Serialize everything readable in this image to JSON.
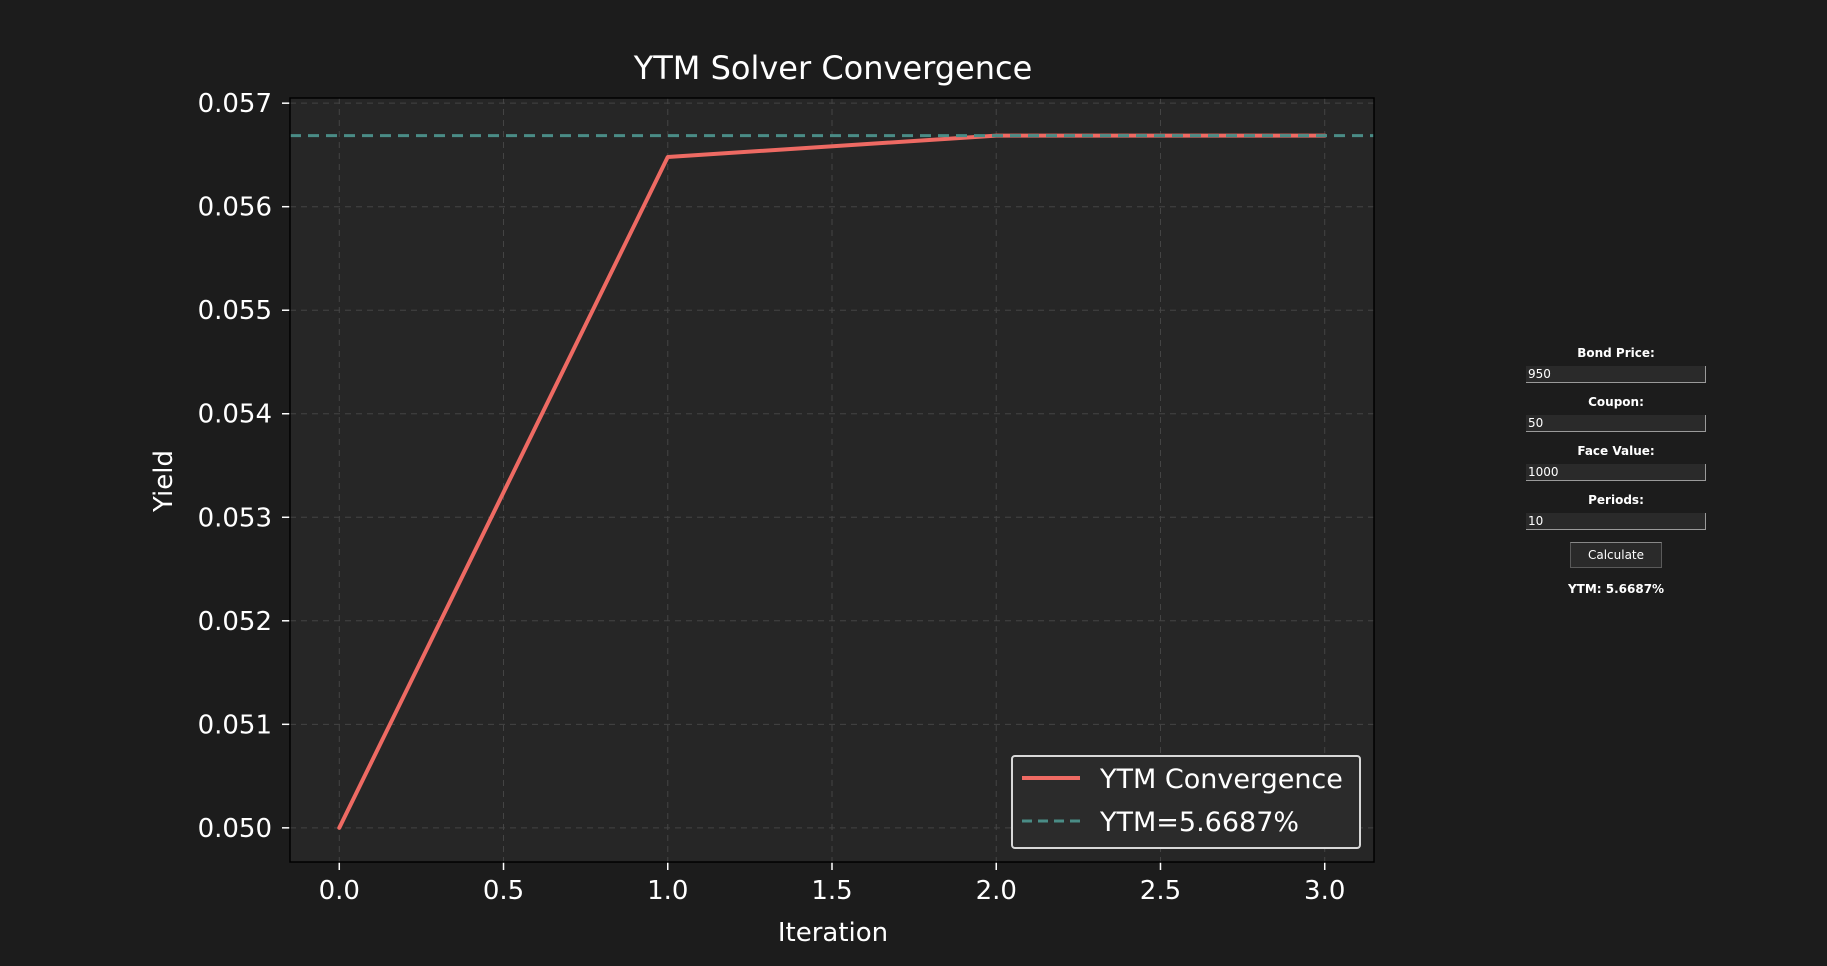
{
  "chart_data": {
    "type": "line",
    "title": "YTM Solver Convergence",
    "xlabel": "Iteration",
    "ylabel": "Yield",
    "xlim": [
      -0.15,
      3.15
    ],
    "ylim": [
      0.04967,
      0.05705
    ],
    "xticks": [
      0.0,
      0.5,
      1.0,
      1.5,
      2.0,
      2.5,
      3.0
    ],
    "xtick_labels": [
      "0.0",
      "0.5",
      "1.0",
      "1.5",
      "2.0",
      "2.5",
      "3.0"
    ],
    "yticks": [
      0.05,
      0.051,
      0.052,
      0.053,
      0.054,
      0.055,
      0.056,
      0.057
    ],
    "ytick_labels": [
      "0.050",
      "0.051",
      "0.052",
      "0.053",
      "0.054",
      "0.055",
      "0.056",
      "0.057"
    ],
    "grid": true,
    "legend_position": "bottom-right",
    "series": [
      {
        "name": "YTM Convergence",
        "style": "solid",
        "color": "#ee6a63",
        "x": [
          0,
          1,
          2,
          3
        ],
        "values": [
          0.05,
          0.05648,
          0.056687,
          0.056687
        ]
      },
      {
        "name": "YTM=5.6687%",
        "style": "dashed",
        "color": "#4a8c86",
        "type": "hline",
        "y": 0.056687
      }
    ],
    "colors": {
      "background": "#1c1c1c",
      "plot_area": "#262626",
      "grid": "#444444",
      "text": "#ffffff"
    }
  },
  "panel": {
    "bond_price": {
      "label": "Bond Price:",
      "value": "950"
    },
    "coupon": {
      "label": "Coupon:",
      "value": "50"
    },
    "face_value": {
      "label": "Face Value:",
      "value": "1000"
    },
    "periods": {
      "label": "Periods:",
      "value": "10"
    },
    "calculate_label": "Calculate",
    "result": "YTM: 5.6687%"
  }
}
